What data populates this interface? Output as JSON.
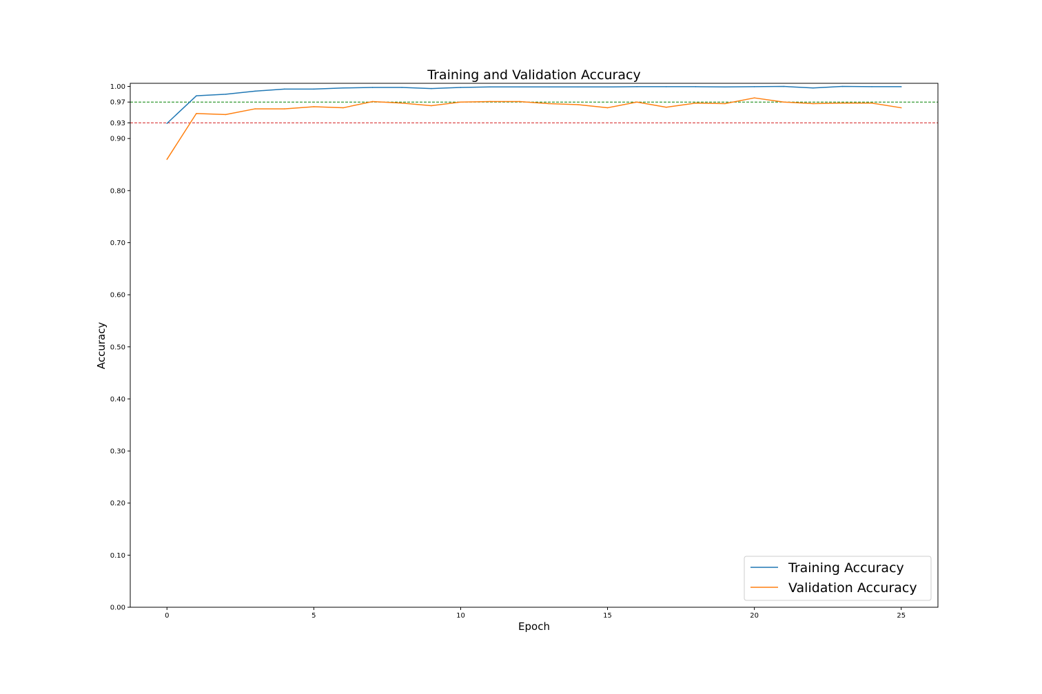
{
  "chart_data": {
    "type": "line",
    "title": "Training and Validation Accuracy",
    "xlabel": "Epoch",
    "ylabel": "Accuracy",
    "xlim": [
      -1.25,
      26.25
    ],
    "ylim": [
      0.0,
      1.006
    ],
    "xticks": [
      0,
      5,
      10,
      15,
      20,
      25
    ],
    "xtick_labels": [
      "0",
      "5",
      "10",
      "15",
      "20",
      "25"
    ],
    "yticks": [
      0.0,
      0.1,
      0.2,
      0.3,
      0.4,
      0.5,
      0.6,
      0.7,
      0.8,
      0.9,
      0.93,
      0.97,
      1.0
    ],
    "ytick_labels": [
      "0.00",
      "0.10",
      "0.20",
      "0.30",
      "0.40",
      "0.50",
      "0.60",
      "0.70",
      "0.80",
      "0.90",
      "0.93",
      "0.97",
      "1.00"
    ],
    "grid": false,
    "legend_position": "lower-right",
    "x": [
      0,
      1,
      2,
      3,
      4,
      5,
      6,
      7,
      8,
      9,
      10,
      11,
      12,
      13,
      14,
      15,
      16,
      17,
      18,
      19,
      20,
      21,
      22,
      23,
      24,
      25
    ],
    "series": [
      {
        "name": "Training Accuracy",
        "color": "#1f77b4",
        "values": [
          0.929,
          0.982,
          0.985,
          0.991,
          0.995,
          0.995,
          0.997,
          0.998,
          0.998,
          0.996,
          0.998,
          0.999,
          0.999,
          0.999,
          0.999,
          0.999,
          0.9995,
          0.9995,
          0.9995,
          0.999,
          0.9995,
          1.0,
          0.997,
          1.0,
          0.9995,
          0.9995
        ]
      },
      {
        "name": "Validation Accuracy",
        "color": "#ff7f0e",
        "values": [
          0.86,
          0.948,
          0.946,
          0.957,
          0.957,
          0.961,
          0.959,
          0.971,
          0.968,
          0.963,
          0.97,
          0.971,
          0.971,
          0.967,
          0.965,
          0.959,
          0.97,
          0.96,
          0.968,
          0.967,
          0.978,
          0.97,
          0.967,
          0.968,
          0.968,
          0.959
        ]
      }
    ],
    "reference_lines": [
      {
        "y": 0.97,
        "color": "#008000",
        "style": "dashed"
      },
      {
        "y": 0.93,
        "color": "#d62728",
        "style": "dashed"
      }
    ]
  }
}
